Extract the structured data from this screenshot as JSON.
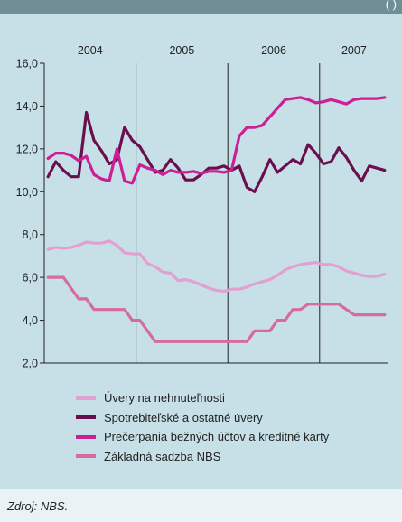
{
  "header": {
    "corner_mark": "( )"
  },
  "chart_data": {
    "type": "line",
    "title": "",
    "xlabel": "",
    "ylabel": "",
    "ylim": [
      2.0,
      16.0
    ],
    "y_ticks": [
      "16,0",
      "14,0",
      "12,0",
      "10,0",
      "8,0",
      "6,0",
      "4,0",
      "2,0"
    ],
    "years": [
      "2004",
      "2005",
      "2006",
      "2007"
    ],
    "year_boundaries": [
      12,
      24,
      36
    ],
    "n_months": 45,
    "grid": false,
    "legend_position": "bottom",
    "series": [
      {
        "name": "Úvery na nehnuteľnosti",
        "color": "#e2a0d0",
        "values": [
          7.3,
          7.4,
          7.35,
          7.4,
          7.5,
          7.65,
          7.6,
          7.6,
          7.7,
          7.5,
          7.15,
          7.1,
          7.1,
          6.65,
          6.5,
          6.25,
          6.2,
          5.85,
          5.9,
          5.8,
          5.65,
          5.5,
          5.4,
          5.35,
          5.45,
          5.45,
          5.55,
          5.7,
          5.8,
          5.9,
          6.1,
          6.35,
          6.5,
          6.6,
          6.65,
          6.7,
          6.6,
          6.6,
          6.5,
          6.3,
          6.2,
          6.1,
          6.05,
          6.05,
          6.15
        ]
      },
      {
        "name": "Spotrebiteľské a ostatné úvery",
        "color": "#6a0f4e",
        "values": [
          10.7,
          11.4,
          11.0,
          10.7,
          10.7,
          13.7,
          12.4,
          11.9,
          11.3,
          11.5,
          13.0,
          12.4,
          12.1,
          11.5,
          10.9,
          11.0,
          11.5,
          11.1,
          10.55,
          10.55,
          10.8,
          11.1,
          11.1,
          11.2,
          11.0,
          11.2,
          10.2,
          10.0,
          10.7,
          11.5,
          10.9,
          11.2,
          11.5,
          11.3,
          12.2,
          11.8,
          11.3,
          11.4,
          12.05,
          11.6,
          11.0,
          10.5,
          11.2,
          11.1,
          11.0
        ]
      },
      {
        "name": "Prečerpania bežných účtov a kreditné karty",
        "color": "#cc1f96",
        "values": [
          11.55,
          11.8,
          11.8,
          11.7,
          11.45,
          11.65,
          10.8,
          10.6,
          10.5,
          12.0,
          10.5,
          10.4,
          11.25,
          11.1,
          11.0,
          10.8,
          11.0,
          10.9,
          10.9,
          10.95,
          10.85,
          10.95,
          10.95,
          10.9,
          11.0,
          12.6,
          13.0,
          13.0,
          13.1,
          13.5,
          13.9,
          14.3,
          14.35,
          14.4,
          14.3,
          14.15,
          14.2,
          14.3,
          14.2,
          14.1,
          14.3,
          14.35,
          14.35,
          14.35,
          14.4
        ]
      },
      {
        "name": "Základná sadzba NBS",
        "color": "#d66c9c",
        "values": [
          6.0,
          6.0,
          6.0,
          5.5,
          5.0,
          5.0,
          4.5,
          4.5,
          4.5,
          4.5,
          4.5,
          4.0,
          4.0,
          3.5,
          3.0,
          3.0,
          3.0,
          3.0,
          3.0,
          3.0,
          3.0,
          3.0,
          3.0,
          3.0,
          3.0,
          3.0,
          3.0,
          3.5,
          3.5,
          3.5,
          4.0,
          4.0,
          4.5,
          4.5,
          4.75,
          4.75,
          4.75,
          4.75,
          4.75,
          4.5,
          4.25,
          4.25,
          4.25,
          4.25,
          4.25
        ]
      }
    ]
  },
  "footer": {
    "source": "Zdroj: NBS."
  }
}
